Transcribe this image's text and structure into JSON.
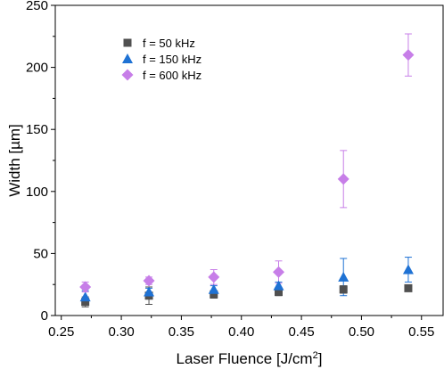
{
  "chart_data": {
    "type": "scatter",
    "xlabel": "Laser Fluence [J/cm²]",
    "xlabel_parts": {
      "main": "Laser Fluence [J/cm",
      "sup": "2",
      "end": "]"
    },
    "ylabel": "Width [µm]",
    "xlim": [
      0.245,
      0.568
    ],
    "ylim": [
      0,
      250
    ],
    "xticks": [
      "0.25",
      "0.30",
      "0.35",
      "0.40",
      "0.45",
      "0.50",
      "0.55"
    ],
    "yticks": [
      "0",
      "50",
      "100",
      "150",
      "200",
      "250"
    ],
    "grid": false,
    "legend_position": "top-left",
    "series": [
      {
        "name": "f = 50 kHz",
        "marker": "square",
        "color": "#505050",
        "x": [
          0.27,
          0.323,
          0.377,
          0.431,
          0.485,
          0.539
        ],
        "y": [
          11,
          16,
          17,
          19,
          21,
          22
        ],
        "err": [
          4,
          7,
          3,
          3,
          3,
          2
        ]
      },
      {
        "name": "f = 150 kHz",
        "marker": "triangle",
        "color": "#1f72d4",
        "x": [
          0.27,
          0.323,
          0.377,
          0.431,
          0.485,
          0.539
        ],
        "y": [
          15,
          19,
          21,
          24,
          31,
          37
        ],
        "err": [
          5,
          3,
          3,
          3,
          15,
          10
        ]
      },
      {
        "name": "f = 600 kHz",
        "marker": "diamond",
        "color": "#c77ee8",
        "x": [
          0.27,
          0.323,
          0.377,
          0.431,
          0.485,
          0.539
        ],
        "y": [
          23,
          28,
          31,
          35,
          110,
          210
        ],
        "err": [
          4,
          3,
          6,
          9,
          23,
          17
        ]
      }
    ]
  }
}
